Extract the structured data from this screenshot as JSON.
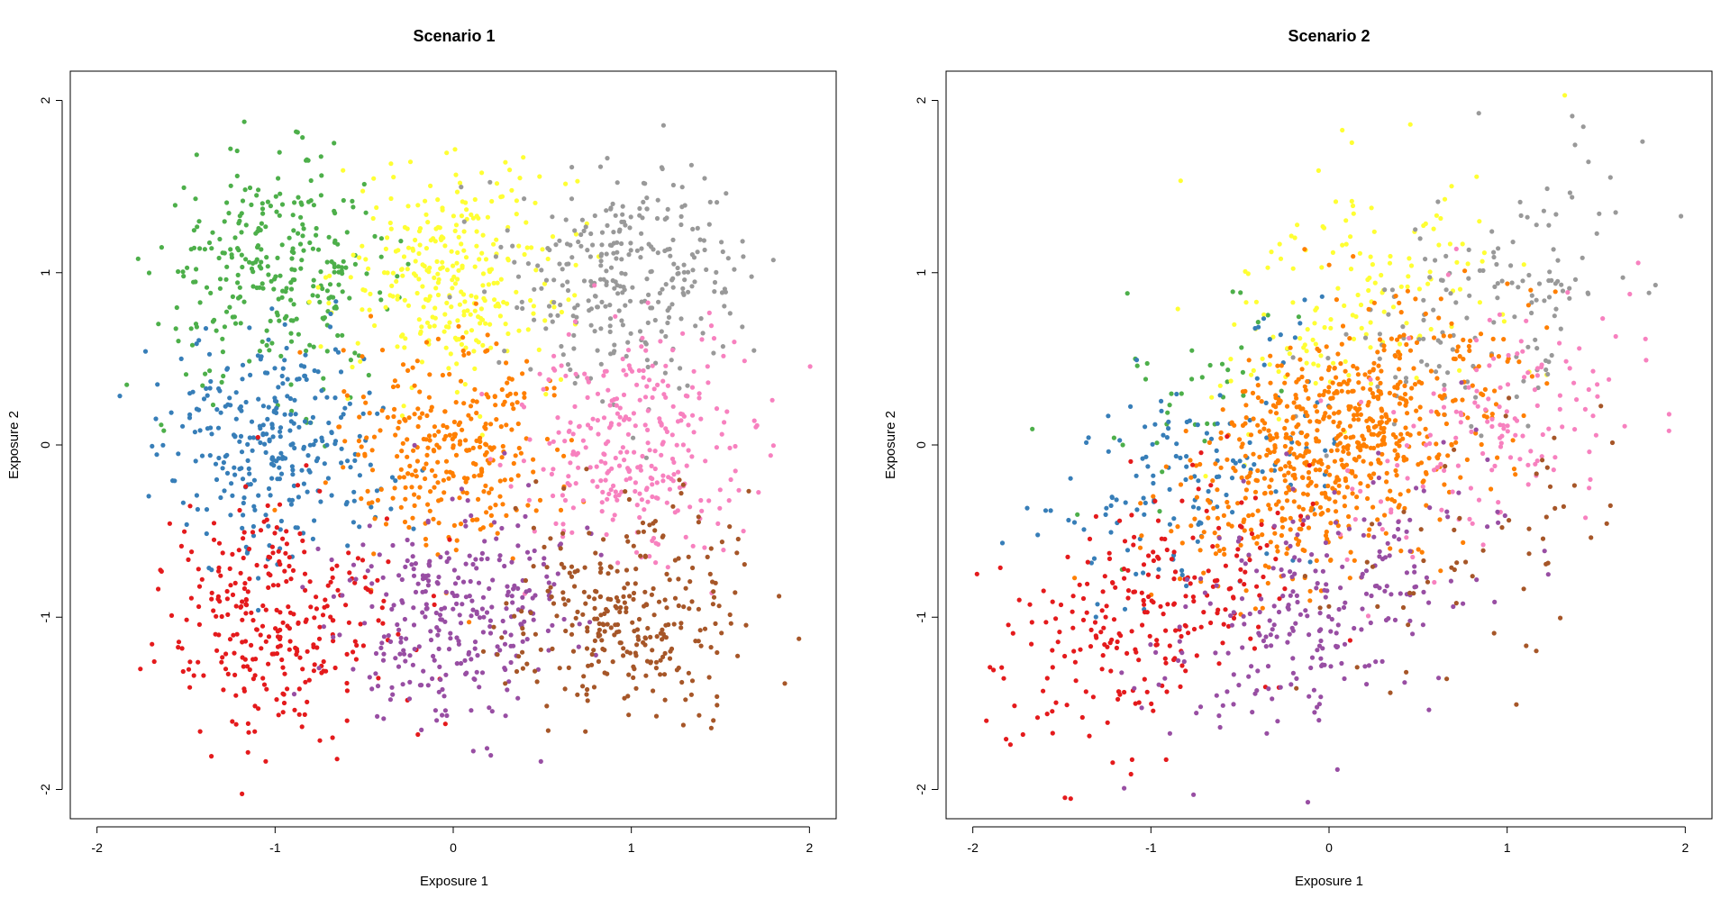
{
  "chart_data": [
    {
      "type": "scatter",
      "title": "Scenario 1",
      "xlabel": "Exposure 1",
      "ylabel": "Exposure 2",
      "xlim": [
        -2.15,
        2.15
      ],
      "ylim": [
        -2.17,
        2.17
      ],
      "xticks": [
        -2,
        -1,
        0,
        1,
        2
      ],
      "yticks": [
        -2,
        -1,
        0,
        1,
        2
      ],
      "grid": false,
      "legend": "none",
      "points_per_cluster": 300,
      "spread": {
        "sx": 0.32,
        "sy": 0.32,
        "rho": 0
      },
      "clusters": [
        {
          "color": "#4DAF4A",
          "center": [
            -1.0,
            1.0
          ]
        },
        {
          "color": "#FFFF33",
          "center": [
            0.0,
            1.0
          ]
        },
        {
          "color": "#999999",
          "center": [
            1.0,
            1.0
          ]
        },
        {
          "color": "#377EB8",
          "center": [
            -1.0,
            0.0
          ]
        },
        {
          "color": "#FF7F00",
          "center": [
            0.0,
            0.0
          ]
        },
        {
          "color": "#F781BF",
          "center": [
            1.0,
            0.0
          ]
        },
        {
          "color": "#E41A1C",
          "center": [
            -1.0,
            -1.0
          ]
        },
        {
          "color": "#984EA3",
          "center": [
            0.0,
            -1.0
          ]
        },
        {
          "color": "#A65628",
          "center": [
            1.0,
            -1.0
          ]
        }
      ]
    },
    {
      "type": "scatter",
      "title": "Scenario 2",
      "xlabel": "Exposure 1",
      "ylabel": "Exposure 2",
      "xlim": [
        -2.15,
        2.15
      ],
      "ylim": [
        -2.17,
        2.17
      ],
      "xticks": [
        -2,
        -1,
        0,
        1,
        2
      ],
      "yticks": [
        -2,
        -1,
        0,
        1,
        2
      ],
      "grid": false,
      "legend": "none",
      "points_per_cluster": [
        40,
        150,
        150,
        150,
        700,
        150,
        250,
        250,
        60
      ],
      "spread": {
        "sx": 0.42,
        "sy": 0.38,
        "rho": 0.45
      },
      "clusters": [
        {
          "color": "#4DAF4A",
          "center": [
            -0.75,
            0.3
          ]
        },
        {
          "color": "#FFFF33",
          "center": [
            0.1,
            0.85
          ]
        },
        {
          "color": "#999999",
          "center": [
            0.95,
            0.9
          ]
        },
        {
          "color": "#377EB8",
          "center": [
            -0.8,
            -0.15
          ]
        },
        {
          "color": "#FF7F00",
          "center": [
            0.05,
            0.0
          ]
        },
        {
          "color": "#F781BF",
          "center": [
            0.9,
            0.1
          ]
        },
        {
          "color": "#E41A1C",
          "center": [
            -1.05,
            -1.0
          ]
        },
        {
          "color": "#984EA3",
          "center": [
            -0.05,
            -0.95
          ]
        },
        {
          "color": "#A65628",
          "center": [
            0.75,
            -0.75
          ]
        }
      ]
    }
  ]
}
